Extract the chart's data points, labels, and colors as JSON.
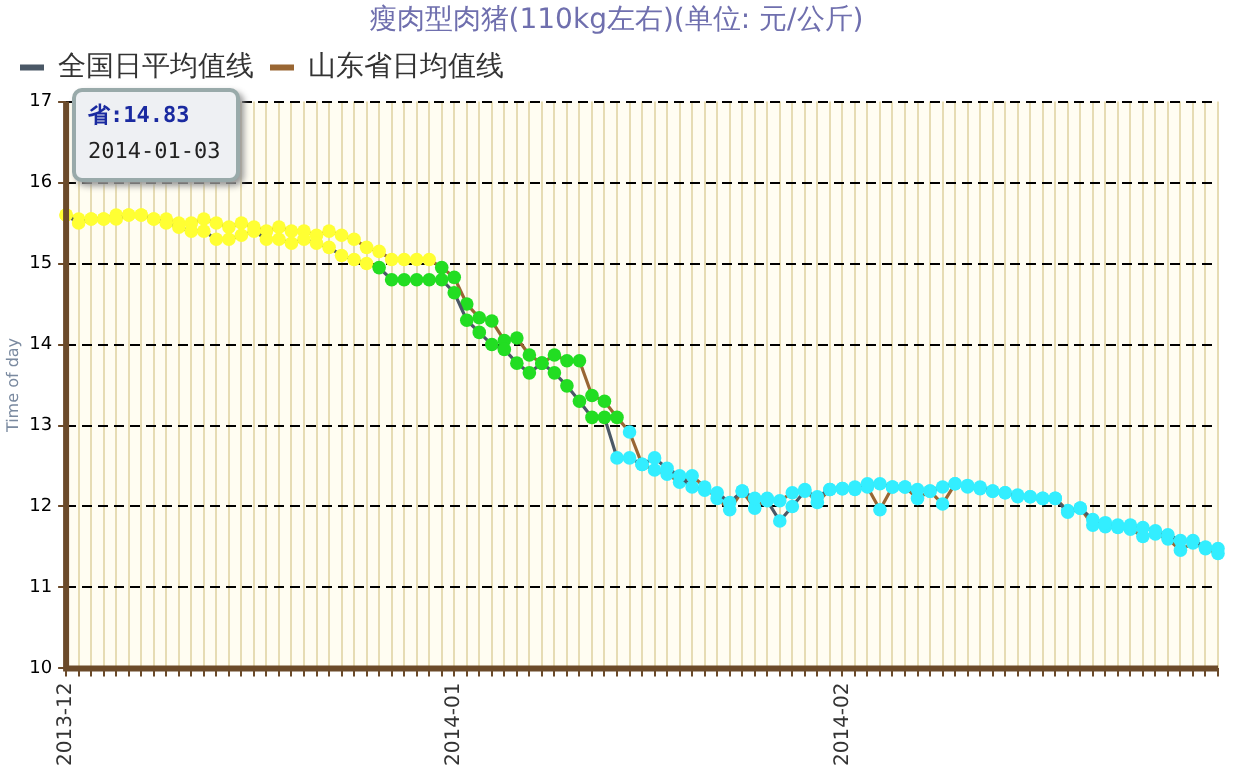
{
  "chart_data": {
    "type": "line",
    "title": "瘦肉型肉猪(110kg左右)(单位: 元/公斤)",
    "ylabel": "Time of day",
    "categories": [
      "2013-12",
      null,
      null,
      null,
      null,
      null,
      null,
      null,
      null,
      null,
      null,
      null,
      null,
      null,
      null,
      null,
      null,
      null,
      null,
      null,
      null,
      null,
      null,
      null,
      null,
      null,
      null,
      null,
      null,
      null,
      null,
      "2014-01",
      null,
      null,
      null,
      null,
      null,
      null,
      null,
      null,
      null,
      null,
      null,
      null,
      null,
      null,
      null,
      null,
      null,
      null,
      null,
      null,
      null,
      null,
      null,
      null,
      null,
      null,
      null,
      null,
      null,
      null,
      "2014-02",
      null,
      null,
      null,
      null,
      null,
      null,
      null,
      null,
      null,
      null,
      null,
      null,
      null,
      null,
      null,
      null,
      null,
      null,
      null,
      null,
      null,
      null,
      null,
      null,
      null,
      null,
      null,
      null,
      null,
      null
    ],
    "series": [
      {
        "name": "全国日平均值线",
        "color": "#4a5866",
        "values": [
          15.6,
          15.5,
          15.55,
          15.55,
          15.55,
          15.6,
          15.6,
          15.55,
          15.5,
          15.45,
          15.4,
          15.4,
          15.3,
          15.3,
          15.35,
          15.4,
          15.3,
          15.3,
          15.25,
          15.3,
          15.25,
          15.2,
          15.1,
          15.05,
          15.0,
          14.95,
          14.8,
          14.8,
          14.8,
          14.8,
          14.8,
          14.64,
          14.3,
          14.15,
          14.0,
          13.94,
          13.77,
          13.65,
          13.77,
          13.65,
          13.49,
          13.3,
          13.1,
          13.1,
          12.6,
          12.6,
          12.52,
          12.6,
          12.47,
          12.38,
          12.24,
          12.2,
          12.17,
          12.05,
          12.19,
          12.1,
          12.07,
          11.82,
          12.0,
          12.19,
          12.12,
          12.21,
          12.22,
          12.24,
          12.28,
          12.28,
          12.24,
          12.24,
          12.21,
          12.19,
          12.24,
          12.28,
          12.26,
          12.24,
          12.19,
          12.17,
          12.12,
          12.12,
          12.1,
          12.1,
          11.93,
          11.98,
          11.84,
          11.8,
          11.77,
          11.77,
          11.74,
          11.7,
          11.65,
          11.58,
          11.58,
          11.5,
          11.48
        ],
        "colors": [
          "#ffff33",
          "#ffff33",
          "#ffff33",
          "#ffff33",
          "#ffff33",
          "#ffff33",
          "#ffff33",
          "#ffff33",
          "#ffff33",
          "#ffff33",
          "#ffff33",
          "#ffff33",
          "#ffff33",
          "#ffff33",
          "#ffff33",
          "#ffff33",
          "#ffff33",
          "#ffff33",
          "#ffff33",
          "#ffff33",
          "#ffff33",
          "#ffff33",
          "#ffff33",
          "#ffff33",
          "#ffff33",
          "#22dd22",
          "#22dd22",
          "#22dd22",
          "#22dd22",
          "#22dd22",
          "#22dd22",
          "#22dd22",
          "#22dd22",
          "#22dd22",
          "#22dd22",
          "#22dd22",
          "#22dd22",
          "#22dd22",
          "#22dd22",
          "#22dd22",
          "#22dd22",
          "#22dd22",
          "#22dd22",
          "#22dd22",
          "#33eeff",
          "#33eeff",
          "#33eeff",
          "#33eeff",
          "#33eeff",
          "#33eeff",
          "#33eeff",
          "#33eeff",
          "#33eeff",
          "#33eeff",
          "#33eeff",
          "#33eeff",
          "#33eeff",
          "#33eeff",
          "#33eeff",
          "#33eeff",
          "#33eeff",
          "#33eeff",
          "#33eeff",
          "#33eeff",
          "#33eeff",
          "#33eeff",
          "#33eeff",
          "#33eeff",
          "#33eeff",
          "#33eeff",
          "#33eeff",
          "#33eeff",
          "#33eeff",
          "#33eeff",
          "#33eeff",
          "#33eeff",
          "#33eeff",
          "#33eeff",
          "#33eeff",
          "#33eeff",
          "#33eeff",
          "#33eeff",
          "#33eeff",
          "#33eeff",
          "#33eeff",
          "#33eeff",
          "#33eeff",
          "#33eeff",
          "#33eeff",
          "#33eeff",
          "#33eeff",
          "#33eeff",
          "#33eeff"
        ]
      },
      {
        "name": "山东省日均值线",
        "color": "#996633",
        "values": [
          15.6,
          15.55,
          15.55,
          15.55,
          15.6,
          15.6,
          15.6,
          15.55,
          15.55,
          15.5,
          15.5,
          15.55,
          15.5,
          15.45,
          15.5,
          15.45,
          15.4,
          15.45,
          15.4,
          15.4,
          15.35,
          15.4,
          15.35,
          15.3,
          15.2,
          15.15,
          15.05,
          15.05,
          15.05,
          15.05,
          14.95,
          14.83,
          14.5,
          14.33,
          14.29,
          14.05,
          14.08,
          13.87,
          13.77,
          13.87,
          13.8,
          13.8,
          13.37,
          13.3,
          13.1,
          12.92,
          12.52,
          12.45,
          12.4,
          12.3,
          12.38,
          12.24,
          12.1,
          11.96,
          12.19,
          11.98,
          12.1,
          12.07,
          12.17,
          12.21,
          12.05,
          12.21,
          12.22,
          12.21,
          12.24,
          11.96,
          12.24,
          12.24,
          12.1,
          12.19,
          12.03,
          12.28,
          12.24,
          12.22,
          12.19,
          12.17,
          12.14,
          12.12,
          12.1,
          12.1,
          11.95,
          11.98,
          11.77,
          11.75,
          11.74,
          11.72,
          11.63,
          11.66,
          11.6,
          11.46,
          11.55,
          11.48,
          11.42
        ],
        "colors": [
          "#ffff33",
          "#ffff33",
          "#ffff33",
          "#ffff33",
          "#ffff33",
          "#ffff33",
          "#ffff33",
          "#ffff33",
          "#ffff33",
          "#ffff33",
          "#ffff33",
          "#ffff33",
          "#ffff33",
          "#ffff33",
          "#ffff33",
          "#ffff33",
          "#ffff33",
          "#ffff33",
          "#ffff33",
          "#ffff33",
          "#ffff33",
          "#ffff33",
          "#ffff33",
          "#ffff33",
          "#ffff33",
          "#ffff33",
          "#ffff33",
          "#ffff33",
          "#ffff33",
          "#ffff33",
          "#22dd22",
          "#22dd22",
          "#22dd22",
          "#22dd22",
          "#22dd22",
          "#22dd22",
          "#22dd22",
          "#22dd22",
          "#22dd22",
          "#22dd22",
          "#22dd22",
          "#22dd22",
          "#22dd22",
          "#22dd22",
          "#22dd22",
          "#33eeff",
          "#33eeff",
          "#33eeff",
          "#33eeff",
          "#33eeff",
          "#33eeff",
          "#33eeff",
          "#33eeff",
          "#33eeff",
          "#33eeff",
          "#33eeff",
          "#33eeff",
          "#33eeff",
          "#33eeff",
          "#33eeff",
          "#33eeff",
          "#33eeff",
          "#33eeff",
          "#33eeff",
          "#33eeff",
          "#33eeff",
          "#33eeff",
          "#33eeff",
          "#33eeff",
          "#33eeff",
          "#33eeff",
          "#33eeff",
          "#33eeff",
          "#33eeff",
          "#33eeff",
          "#33eeff",
          "#33eeff",
          "#33eeff",
          "#33eeff",
          "#33eeff",
          "#33eeff",
          "#33eeff",
          "#33eeff",
          "#33eeff",
          "#33eeff",
          "#33eeff",
          "#33eeff",
          "#33eeff",
          "#33eeff",
          "#33eeff",
          "#33eeff",
          "#33eeff",
          "#33eeff"
        ]
      }
    ],
    "ylim": [
      10,
      17
    ],
    "yticks": [
      10,
      11,
      12,
      13,
      14,
      15,
      16,
      17
    ],
    "grid": true,
    "legend": "top left",
    "marker": "circle",
    "line_style": "solid",
    "annotations": [
      "省:14.83",
      "2014-01-03"
    ]
  }
}
